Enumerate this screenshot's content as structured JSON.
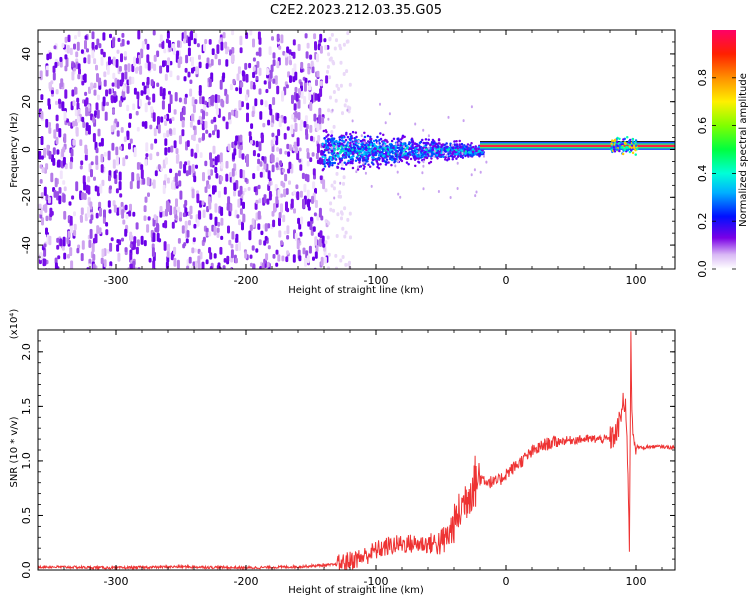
{
  "title": "C2E2.2023.212.03.35.G05",
  "colors": {
    "spectrogram_faint": "#e6d3f7",
    "spectrogram_mid": "#b37de8",
    "spectrogram_strong": "#6a00e8",
    "snr_line": "#ee3333",
    "axis": "#000000"
  },
  "chart_data": [
    {
      "type": "heatmap",
      "name_in_image": "spectrogram",
      "xlabel": "Height of straight line (km)",
      "ylabel": "Frequency (Hz)",
      "xlim": [
        -360,
        130
      ],
      "ylim": [
        -50,
        50
      ],
      "xticks": [
        -300,
        -200,
        -100,
        0,
        100
      ],
      "xtick_labels": [
        "-300",
        "-200",
        "-100",
        "0",
        "100"
      ],
      "yticks": [
        -40,
        -20,
        0,
        20,
        40
      ],
      "ytick_labels": [
        "-40",
        "-20",
        "0",
        "20",
        "40"
      ],
      "colorbar": {
        "label": "Normalized spectral amplitude",
        "range": [
          0,
          1
        ],
        "ticks": [
          0.0,
          0.2,
          0.4,
          0.6,
          0.8
        ],
        "tick_labels": [
          "0.0",
          "0.2",
          "0.4",
          "0.6",
          "0.8"
        ]
      },
      "regions": [
        {
          "description_x": [
            -360,
            -140
          ],
          "freq_range": [
            -50,
            50
          ],
          "amplitude": 0.15
        },
        {
          "description_x": [
            -140,
            -20
          ],
          "freq_center": 0,
          "freq_halfwidth_start": 12,
          "freq_halfwidth_end": 3,
          "amplitude": 0.5
        },
        {
          "description_x": [
            -20,
            130
          ],
          "freq_center": 1.5,
          "freq_halfwidth": 1.5,
          "amplitude": 0.9
        },
        {
          "description_x": [
            80,
            100
          ],
          "freq_center": 2,
          "freq_halfwidth": 4,
          "amplitude": 0.6
        }
      ]
    },
    {
      "type": "line",
      "name_in_image": "snr",
      "xlabel": "Height of straight line (km)",
      "ylabel": "SNR (10 * v/v)",
      "y_multiplier": "(x10⁴)",
      "xlim": [
        -360,
        130
      ],
      "ylim": [
        0,
        2.2
      ],
      "xticks": [
        -300,
        -200,
        -100,
        0,
        100
      ],
      "xtick_labels": [
        "-300",
        "-200",
        "-100",
        "0",
        "100"
      ],
      "yticks": [
        0.0,
        0.5,
        1.0,
        1.5,
        2.0
      ],
      "ytick_labels": [
        "0.0",
        "0.5",
        "1.0",
        "1.5",
        "2.0"
      ],
      "series": [
        {
          "x": [
            -360,
            -300,
            -250,
            -200,
            -160,
            -130,
            -110,
            -100,
            -90,
            -80,
            -70,
            -60,
            -50,
            -45,
            -40,
            -35,
            -30,
            -25,
            -20,
            -15,
            -10,
            -5,
            0,
            10,
            20,
            30,
            40,
            50,
            60,
            70,
            80,
            85,
            88,
            90,
            92,
            94,
            95,
            96,
            97,
            98,
            100,
            105,
            110,
            120,
            130
          ],
          "y": [
            0.03,
            0.02,
            0.03,
            0.02,
            0.03,
            0.05,
            0.12,
            0.18,
            0.22,
            0.24,
            0.24,
            0.24,
            0.25,
            0.3,
            0.42,
            0.55,
            0.68,
            0.8,
            0.85,
            0.82,
            0.8,
            0.82,
            0.88,
            0.98,
            1.08,
            1.15,
            1.18,
            1.19,
            1.2,
            1.2,
            1.2,
            1.25,
            1.38,
            1.55,
            1.45,
            0.9,
            0.15,
            2.15,
            1.4,
            1.25,
            1.13,
            1.12,
            1.13,
            1.13,
            1.12
          ]
        }
      ]
    }
  ]
}
